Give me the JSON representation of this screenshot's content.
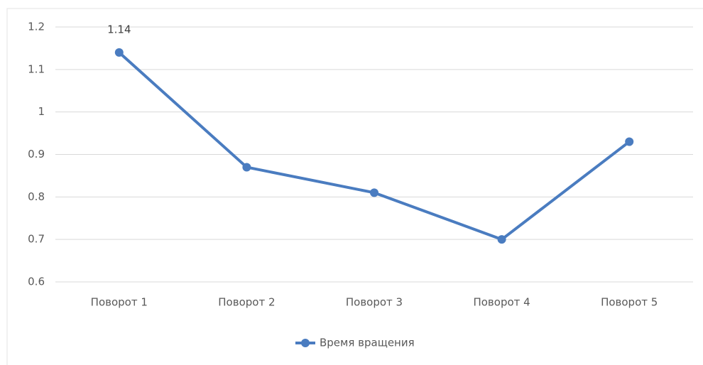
{
  "chart_data": {
    "type": "line",
    "categories": [
      "Поворот 1",
      "Поворот 2",
      "Поворот 3",
      "Поворот 4",
      "Поворот 5"
    ],
    "series": [
      {
        "name": "Время вращения",
        "color": "#4a7cc0",
        "values": [
          1.14,
          0.87,
          0.81,
          0.7,
          0.93
        ],
        "value_labels": [
          "1.14",
          null,
          null,
          null,
          null
        ]
      }
    ],
    "ylim": [
      0.6,
      1.2
    ],
    "yticks": [
      0.6,
      0.7,
      0.8,
      0.9,
      1,
      1.1,
      1.2
    ],
    "grid": true,
    "legend": "bottom"
  }
}
